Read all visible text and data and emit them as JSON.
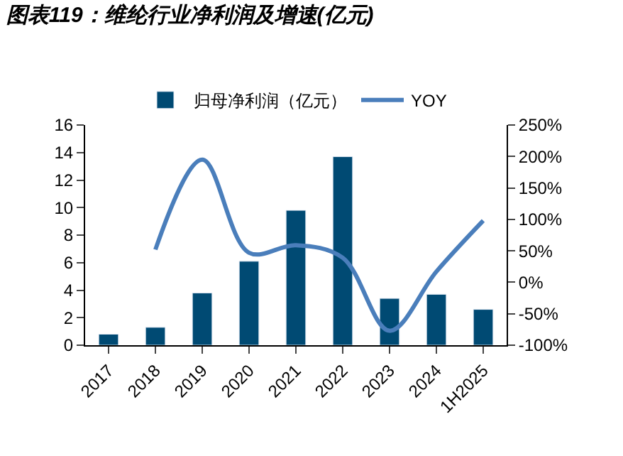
{
  "chart_data": {
    "type": "bar",
    "title": "图表119：维纶行业净利润及增速(亿元)",
    "categories": [
      "2017",
      "2018",
      "2019",
      "2020",
      "2021",
      "2022",
      "2023",
      "2024",
      "1H2025"
    ],
    "series": [
      {
        "name": "归母净利润（亿元）",
        "color": "#004a73",
        "values": [
          0.8,
          1.3,
          3.8,
          6.1,
          9.8,
          13.7,
          3.4,
          3.7,
          2.6
        ]
      },
      {
        "name": "YOY",
        "color": "#4a7ebb",
        "type": "line",
        "axis": "y2",
        "values": [
          null,
          52,
          195,
          47,
          59,
          39,
          -77,
          17,
          98
        ]
      }
    ],
    "ylim": [
      0,
      16
    ],
    "yticks": [
      0,
      2,
      4,
      6,
      8,
      10,
      12,
      14,
      16
    ],
    "y2lim": [
      -100,
      250
    ],
    "y2ticks": [
      {
        "value": -100,
        "label": "-100%"
      },
      {
        "value": -50,
        "label": "-50%"
      },
      {
        "value": 0,
        "label": "0%"
      },
      {
        "value": 50,
        "label": "50%"
      },
      {
        "value": 100,
        "label": "100%"
      },
      {
        "value": 150,
        "label": "150%"
      },
      {
        "value": 200,
        "label": "200%"
      },
      {
        "value": 250,
        "label": "250%"
      }
    ],
    "legend": "top",
    "marker": "none",
    "line_style": "solid"
  }
}
